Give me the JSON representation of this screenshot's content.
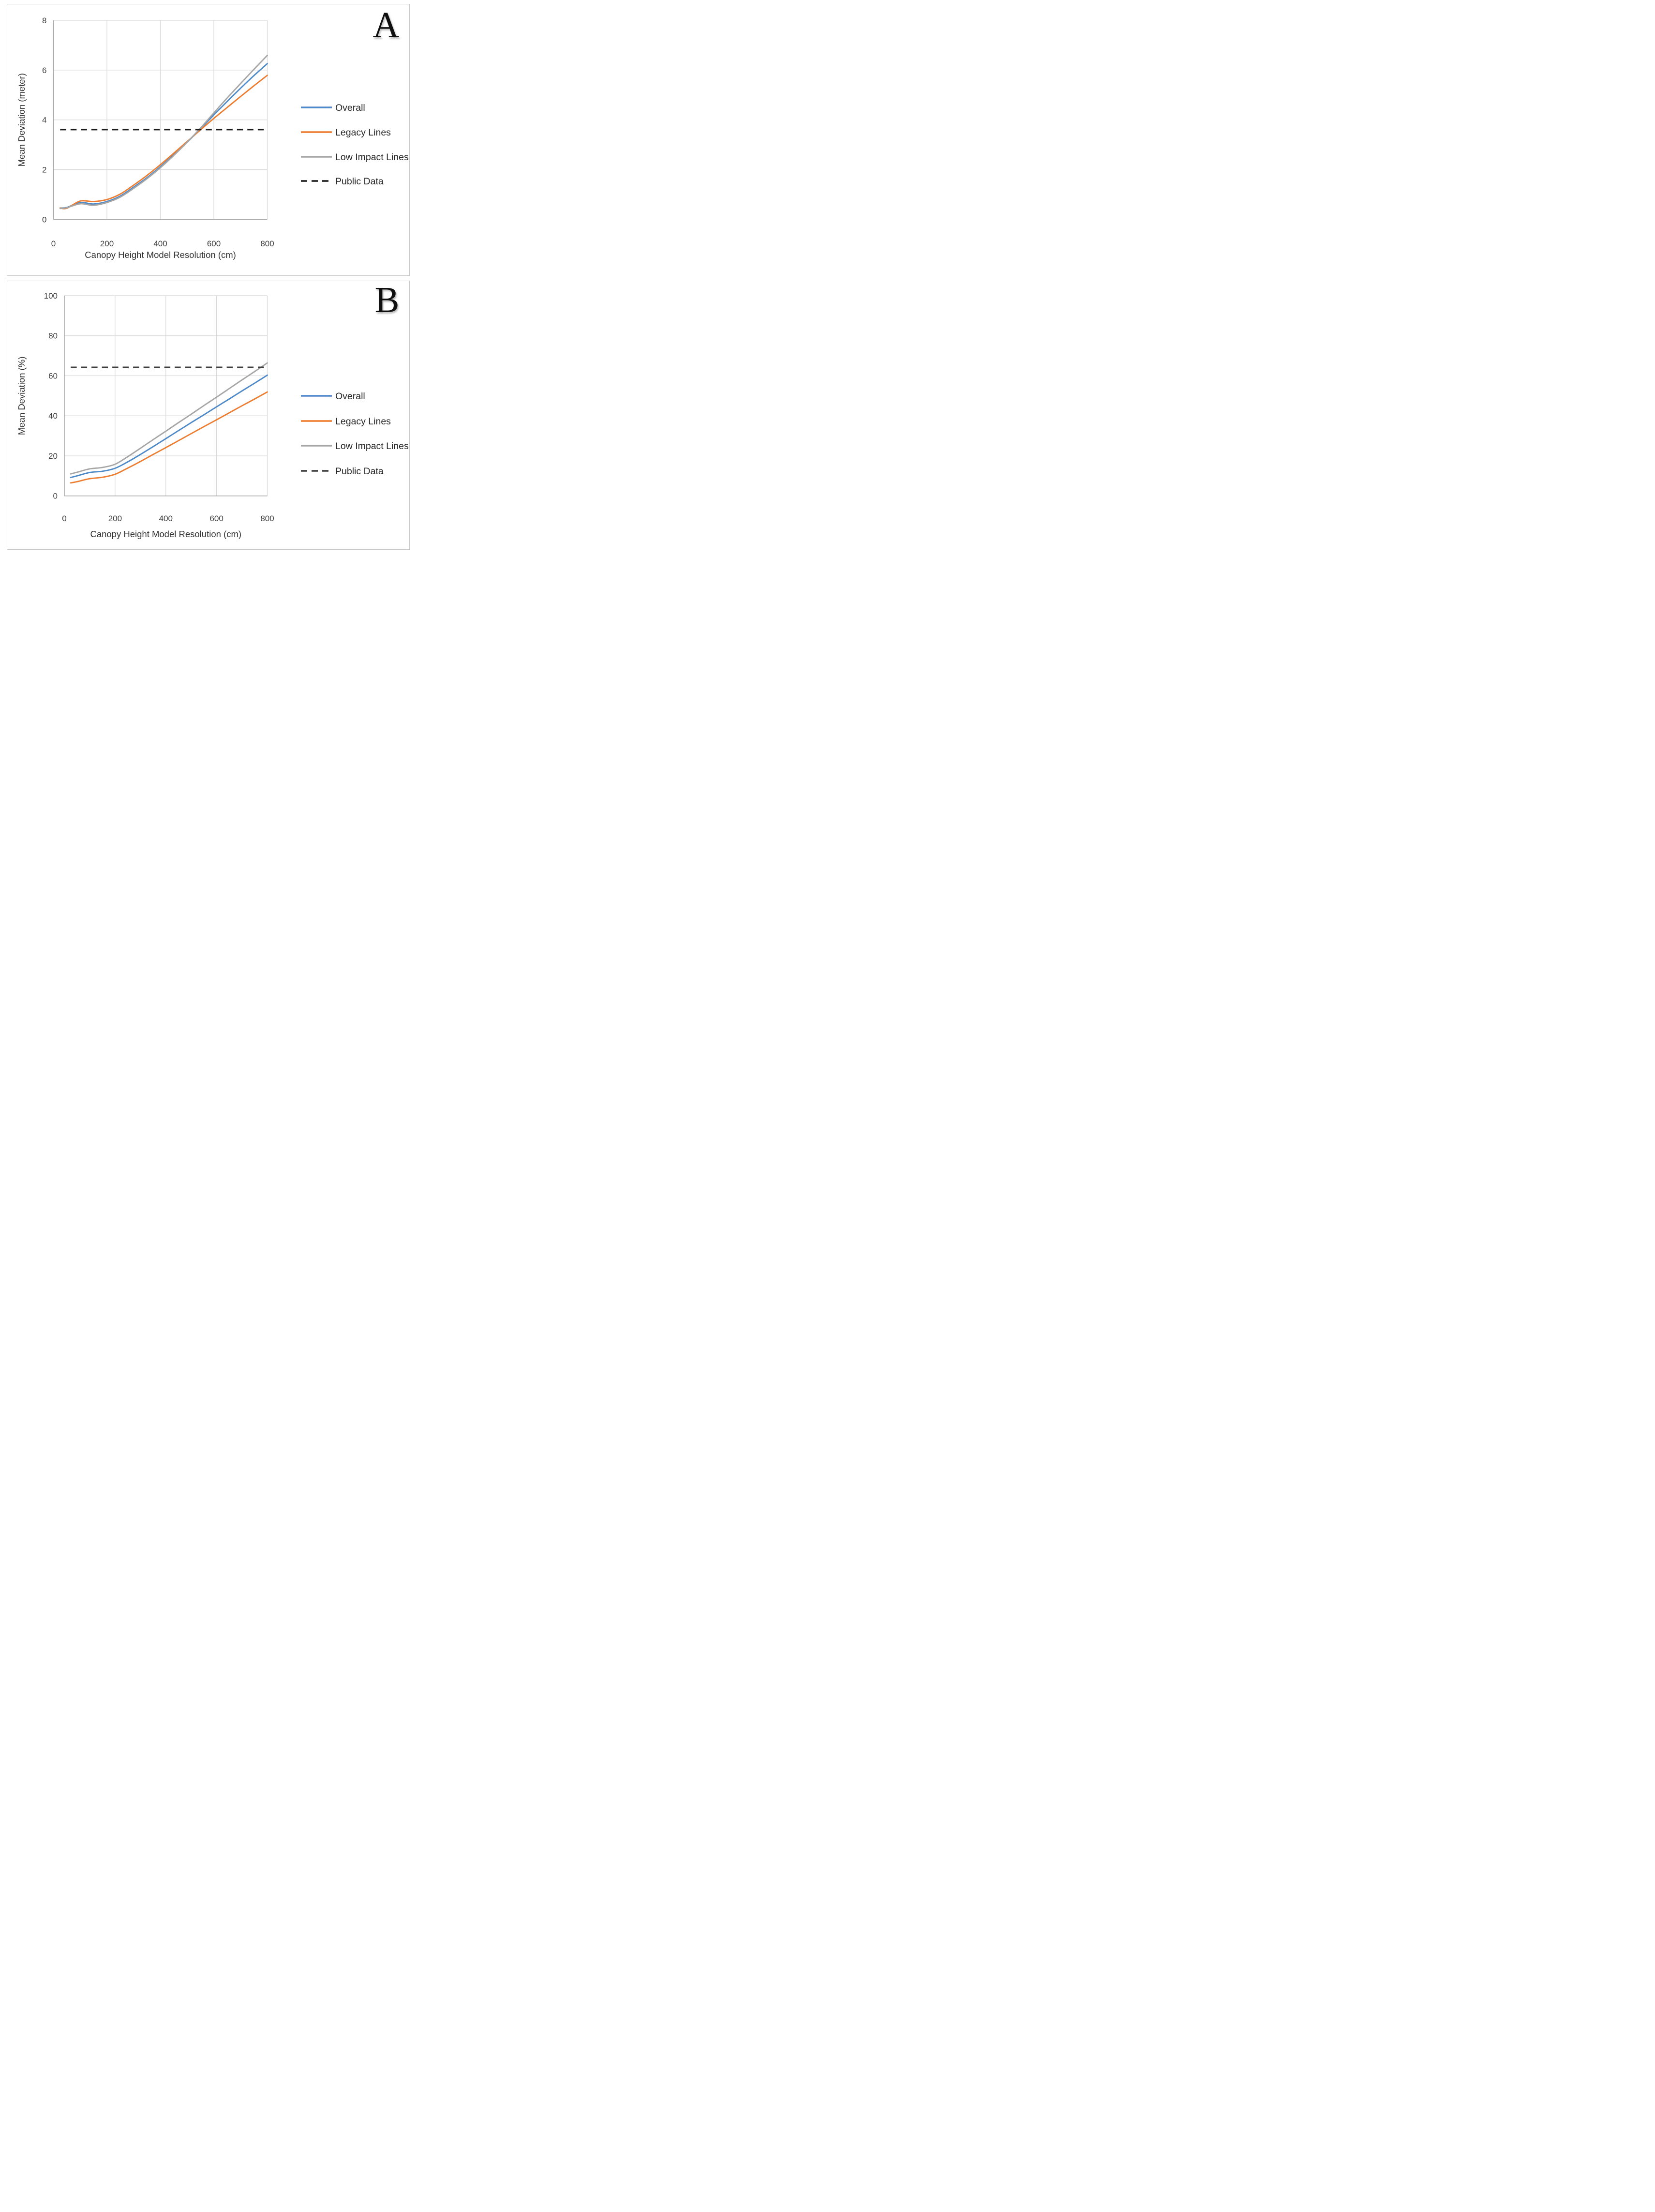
{
  "page": {
    "background": "#ffffff",
    "panel_border": "#c9c9c9"
  },
  "panels": [
    {
      "label": "A"
    },
    {
      "label": "B"
    }
  ],
  "legend": {
    "entries": [
      "Overall",
      "Legacy Lines",
      "Low Impact Lines",
      "Public Data"
    ]
  },
  "colors": {
    "overall": "#4E8AC8",
    "legacy": "#ED7D31",
    "low_impact": "#A6A6A6",
    "public_dashed_a": "#1C1C1C",
    "public_dashed_b": "#3F3F3F",
    "gridline": "#D8D8D8",
    "axis_line": "#A8A8A8"
  },
  "chart_data": [
    {
      "type": "line",
      "panel_label": "A",
      "title": "",
      "xlabel": "Canopy Height Model Resolution (cm)",
      "ylabel": "Mean Deviation (meter)",
      "xlim": [
        0,
        800
      ],
      "ylim": [
        0,
        8
      ],
      "xticks": [
        0,
        200,
        400,
        600,
        800
      ],
      "yticks": [
        0,
        2,
        4,
        6,
        8
      ],
      "grid": true,
      "legend_position": "right",
      "x": [
        25,
        50,
        100,
        150,
        200,
        250,
        300,
        350,
        400,
        450,
        500,
        550,
        600,
        650,
        700,
        750,
        800
      ],
      "series": [
        {
          "name": "Overall",
          "color": "#4E8AC8",
          "style": "solid",
          "values": [
            0.46,
            0.48,
            0.68,
            0.62,
            0.72,
            0.94,
            1.3,
            1.68,
            2.12,
            2.6,
            3.1,
            3.64,
            4.2,
            4.74,
            5.27,
            5.78,
            6.26
          ]
        },
        {
          "name": "Legacy Lines",
          "color": "#ED7D31",
          "style": "solid",
          "values": [
            0.46,
            0.45,
            0.74,
            0.72,
            0.8,
            1.02,
            1.38,
            1.77,
            2.2,
            2.66,
            3.13,
            3.6,
            4.06,
            4.5,
            4.94,
            5.37,
            5.79
          ]
        },
        {
          "name": "Low Impact Lines",
          "color": "#A6A6A6",
          "style": "solid",
          "values": [
            0.44,
            0.47,
            0.63,
            0.57,
            0.68,
            0.9,
            1.25,
            1.64,
            2.08,
            2.57,
            3.1,
            3.67,
            4.28,
            4.88,
            5.46,
            6.03,
            6.59
          ]
        },
        {
          "name": "Public Data",
          "color": "#1C1C1C",
          "style": "dashed",
          "constant": 3.61
        }
      ]
    },
    {
      "type": "line",
      "panel_label": "B",
      "title": "",
      "xlabel": "Canopy Height Model Resolution (cm)",
      "ylabel": "Mean Deviation (%)",
      "xlim": [
        0,
        800
      ],
      "ylim": [
        0,
        100
      ],
      "xticks": [
        0,
        200,
        400,
        600,
        800
      ],
      "yticks": [
        0,
        20,
        40,
        60,
        80,
        100
      ],
      "grid": true,
      "legend_position": "right",
      "x": [
        25,
        50,
        100,
        150,
        200,
        250,
        300,
        350,
        400,
        450,
        500,
        550,
        600,
        650,
        700,
        750,
        800
      ],
      "series": [
        {
          "name": "Overall",
          "color": "#4E8AC8",
          "style": "solid",
          "values": [
            9.2,
            10.0,
            11.7,
            12.3,
            13.8,
            17.0,
            20.7,
            24.6,
            28.6,
            32.6,
            36.6,
            40.5,
            44.5,
            48.4,
            52.4,
            56.3,
            60.3
          ]
        },
        {
          "name": "Legacy Lines",
          "color": "#ED7D31",
          "style": "solid",
          "values": [
            6.5,
            7.1,
            8.6,
            9.3,
            10.8,
            13.9,
            17.2,
            20.7,
            24.1,
            27.6,
            31.1,
            34.6,
            38.0,
            41.5,
            45.0,
            48.4,
            51.9
          ]
        },
        {
          "name": "Low Impact Lines",
          "color": "#A6A6A6",
          "style": "solid",
          "values": [
            11.0,
            11.8,
            13.5,
            14.2,
            15.8,
            19.6,
            23.8,
            28.1,
            32.3,
            36.6,
            40.8,
            45.1,
            49.3,
            53.6,
            57.9,
            62.1,
            66.4
          ]
        },
        {
          "name": "Public Data",
          "color": "#3F3F3F",
          "style": "dashed",
          "constant": 64.2
        }
      ]
    }
  ]
}
